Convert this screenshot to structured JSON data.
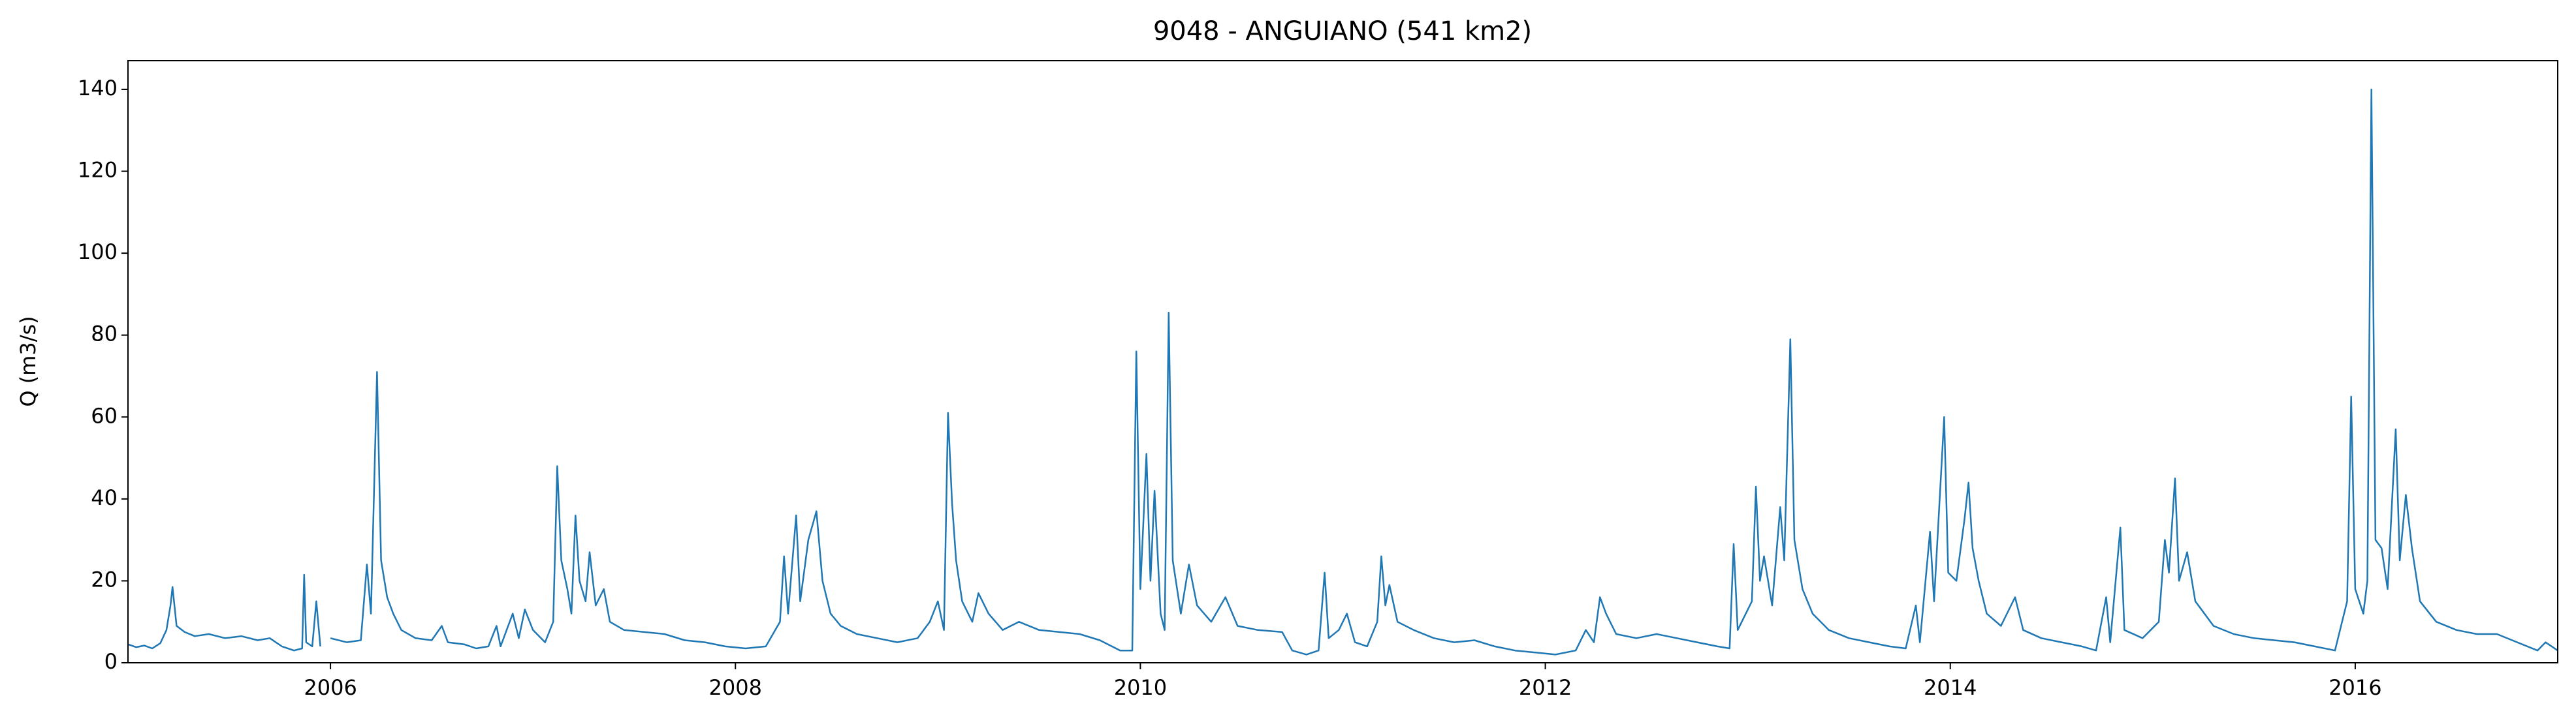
{
  "chart_data": {
    "type": "line",
    "title": "9048 - ANGUIANO (541 km2)",
    "ylabel": "Q (m3/s)",
    "xlim": [
      2005.0,
      2017.0
    ],
    "xticks": [
      2006,
      2008,
      2010,
      2012,
      2014,
      2016
    ],
    "ylim": [
      0,
      147
    ],
    "yticks": [
      0,
      20,
      40,
      60,
      80,
      100,
      120,
      140
    ],
    "grid": false,
    "x": [
      2005.0,
      2005.04,
      2005.08,
      2005.12,
      2005.16,
      2005.19,
      2005.21,
      2005.22,
      2005.24,
      2005.28,
      2005.33,
      2005.4,
      2005.48,
      2005.56,
      2005.64,
      2005.7,
      2005.76,
      2005.82,
      2005.86,
      2005.87,
      2005.88,
      2005.91,
      2005.93,
      2005.95,
      2005.97,
      2006.0,
      2006.08,
      2006.15,
      2006.18,
      2006.2,
      2006.23,
      2006.25,
      2006.28,
      2006.31,
      2006.35,
      2006.42,
      2006.5,
      2006.55,
      2006.58,
      2006.66,
      2006.72,
      2006.78,
      2006.82,
      2006.84,
      2006.9,
      2006.93,
      2006.96,
      2007.0,
      2007.06,
      2007.1,
      2007.12,
      2007.14,
      2007.17,
      2007.19,
      2007.21,
      2007.23,
      2007.26,
      2007.28,
      2007.31,
      2007.35,
      2007.38,
      2007.45,
      2007.55,
      2007.65,
      2007.75,
      2007.85,
      2007.95,
      2008.05,
      2008.15,
      2008.22,
      2008.24,
      2008.26,
      2008.3,
      2008.32,
      2008.36,
      2008.4,
      2008.43,
      2008.47,
      2008.52,
      2008.6,
      2008.7,
      2008.8,
      2008.9,
      2008.96,
      2009.0,
      2009.03,
      2009.05,
      2009.07,
      2009.09,
      2009.12,
      2009.17,
      2009.2,
      2009.25,
      2009.32,
      2009.4,
      2009.5,
      2009.6,
      2009.7,
      2009.8,
      2009.9,
      2009.96,
      2009.98,
      2010.0,
      2010.03,
      2010.05,
      2010.07,
      2010.1,
      2010.12,
      2010.14,
      2010.16,
      2010.2,
      2010.24,
      2010.28,
      2010.35,
      2010.42,
      2010.48,
      2010.58,
      2010.7,
      2010.75,
      2010.82,
      2010.88,
      2010.91,
      2010.93,
      2010.98,
      2011.02,
      2011.06,
      2011.12,
      2011.17,
      2011.19,
      2011.21,
      2011.23,
      2011.27,
      2011.35,
      2011.45,
      2011.55,
      2011.65,
      2011.75,
      2011.85,
      2011.95,
      2012.05,
      2012.15,
      2012.2,
      2012.24,
      2012.27,
      2012.3,
      2012.35,
      2012.45,
      2012.55,
      2012.65,
      2012.75,
      2012.85,
      2012.91,
      2012.93,
      2012.95,
      2013.02,
      2013.04,
      2013.06,
      2013.08,
      2013.12,
      2013.16,
      2013.18,
      2013.21,
      2013.23,
      2013.27,
      2013.32,
      2013.4,
      2013.5,
      2013.6,
      2013.7,
      2013.78,
      2013.83,
      2013.85,
      2013.9,
      2013.92,
      2013.97,
      2013.99,
      2014.03,
      2014.07,
      2014.09,
      2014.11,
      2014.14,
      2014.18,
      2014.25,
      2014.32,
      2014.36,
      2014.45,
      2014.55,
      2014.65,
      2014.72,
      2014.77,
      2014.79,
      2014.84,
      2014.86,
      2014.95,
      2015.03,
      2015.06,
      2015.08,
      2015.11,
      2015.13,
      2015.17,
      2015.21,
      2015.3,
      2015.4,
      2015.5,
      2015.6,
      2015.7,
      2015.8,
      2015.9,
      2015.96,
      2015.98,
      2016.0,
      2016.04,
      2016.06,
      2016.08,
      2016.1,
      2016.13,
      2016.16,
      2016.2,
      2016.22,
      2016.25,
      2016.28,
      2016.32,
      2016.4,
      2016.5,
      2016.6,
      2016.7,
      2016.8,
      2016.9,
      2016.94,
      2017.0
    ],
    "series": [
      {
        "name": "Q",
        "color": "#1f77b4",
        "values": [
          4.5,
          3.8,
          4.2,
          3.5,
          4.8,
          8,
          14,
          18.5,
          9,
          7.5,
          6.5,
          7,
          6,
          6.5,
          5.5,
          6,
          4,
          3,
          3.5,
          21.5,
          5,
          4,
          15,
          4,
          null,
          6,
          5,
          5.5,
          24,
          12,
          71,
          25,
          16,
          12,
          8,
          6,
          5.5,
          9,
          5,
          4.5,
          3.5,
          4,
          9,
          4,
          12,
          6,
          13,
          8,
          5,
          10,
          48,
          25,
          18,
          12,
          36,
          20,
          15,
          27,
          14,
          18,
          10,
          8,
          7.5,
          7,
          5.5,
          5,
          4,
          3.5,
          4,
          10,
          26,
          12,
          36,
          15,
          30,
          37,
          20,
          12,
          9,
          7,
          6,
          5,
          6,
          10,
          15,
          8,
          61,
          39,
          25,
          15,
          10,
          17,
          12,
          8,
          10,
          8,
          7.5,
          7,
          5.5,
          3,
          3,
          76,
          18,
          51,
          20,
          42,
          12,
          8,
          85.5,
          25,
          12,
          24,
          14,
          10,
          16,
          9,
          8,
          7.5,
          3,
          2,
          3,
          22,
          6,
          8,
          12,
          5,
          4,
          10,
          26,
          14,
          19,
          10,
          8,
          6,
          5,
          5.5,
          4,
          3,
          2.5,
          2,
          3,
          8,
          5,
          16,
          12,
          7,
          6,
          7,
          6,
          5,
          4,
          3.5,
          29,
          8,
          15,
          43,
          20,
          26,
          14,
          38,
          25,
          79,
          30,
          18,
          12,
          8,
          6,
          5,
          4,
          3.5,
          14,
          5,
          32,
          15,
          60,
          22,
          20,
          35,
          44,
          28,
          20,
          12,
          9,
          16,
          8,
          6,
          5,
          4,
          3,
          16,
          5,
          33,
          8,
          6,
          10,
          30,
          22,
          45,
          20,
          27,
          15,
          9,
          7,
          6,
          5.5,
          5,
          4,
          3,
          15,
          65,
          18,
          12,
          20,
          140,
          30,
          28,
          18,
          57,
          25,
          41,
          28,
          15,
          10,
          8,
          7,
          7,
          5,
          3,
          5,
          3
        ]
      }
    ]
  }
}
